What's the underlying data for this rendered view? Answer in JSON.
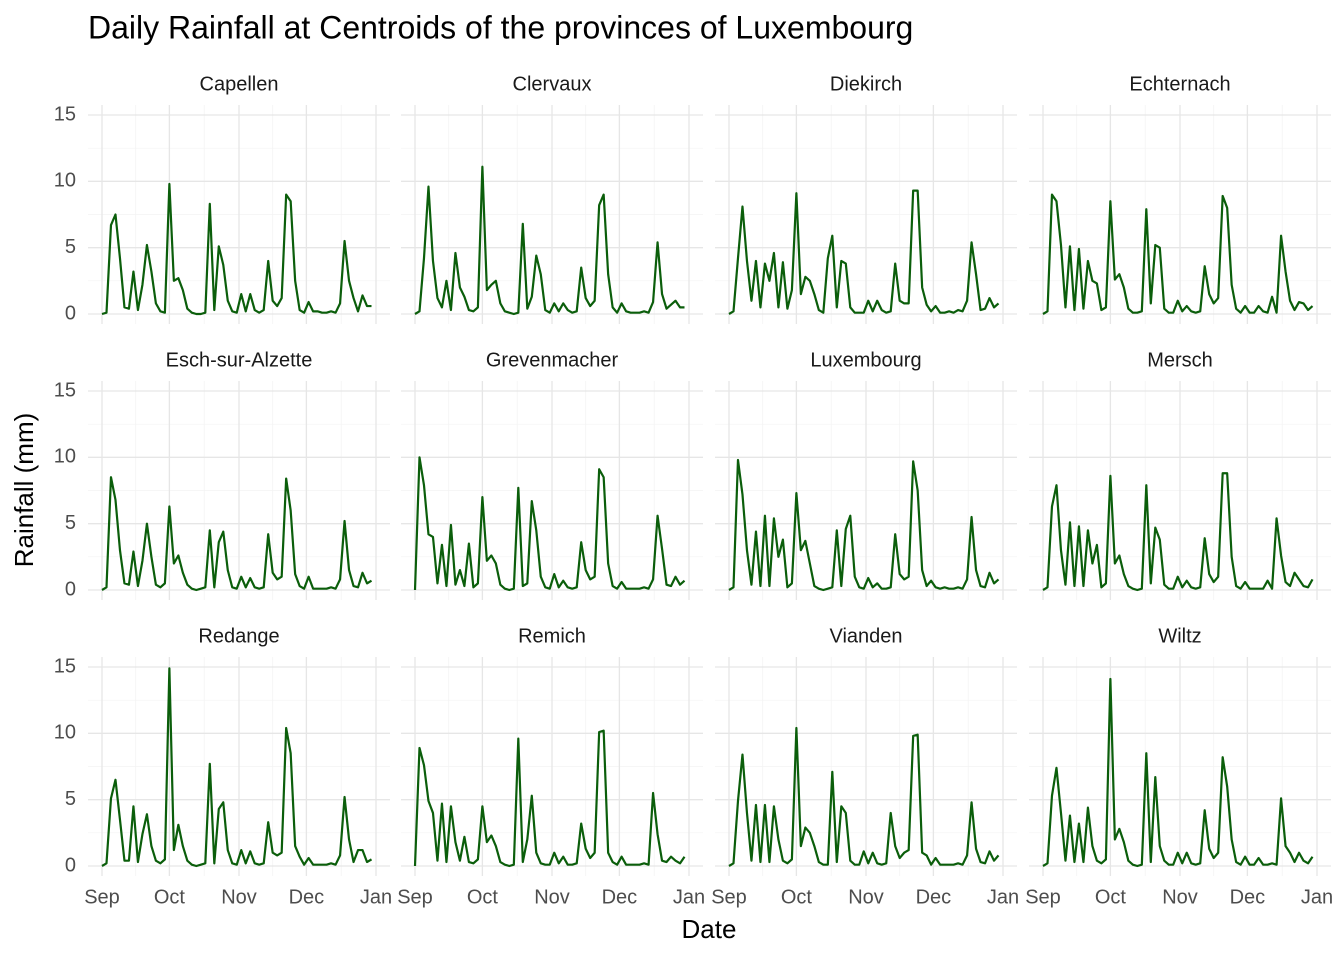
{
  "chart_data": {
    "type": "line",
    "title": "Daily Rainfall at Centroids of the provinces of Luxembourg",
    "xlabel": "Date",
    "ylabel": "Rainfall (mm)",
    "color": "#0b5e0b",
    "grid": true,
    "xlim": [
      0,
      122
    ],
    "xticks": [
      {
        "value": 0,
        "label": "Sep"
      },
      {
        "value": 30,
        "label": "Oct"
      },
      {
        "value": 61,
        "label": "Nov"
      },
      {
        "value": 91,
        "label": "Dec"
      },
      {
        "value": 122,
        "label": "Jan"
      }
    ],
    "ylim": [
      0,
      15
    ],
    "yticks": [
      0,
      5,
      10,
      15
    ],
    "x": [
      0,
      2,
      4,
      6,
      8,
      10,
      12,
      14,
      16,
      18,
      20,
      22,
      24,
      26,
      28,
      30,
      32,
      34,
      36,
      38,
      40,
      42,
      44,
      46,
      48,
      50,
      52,
      54,
      56,
      58,
      60,
      62,
      64,
      66,
      68,
      70,
      72,
      74,
      76,
      78,
      80,
      82,
      84,
      86,
      88,
      90,
      92,
      94,
      96,
      98,
      100,
      102,
      104,
      106,
      108,
      110,
      112,
      114,
      116,
      118,
      120
    ],
    "panels": [
      {
        "name": "Capellen",
        "values": [
          0,
          0.1,
          6.7,
          7.5,
          4.2,
          0.5,
          0.4,
          3.2,
          0.3,
          2.2,
          5.2,
          3.2,
          0.8,
          0.2,
          0.1,
          9.8,
          2.5,
          2.7,
          1.8,
          0.4,
          0.1,
          0,
          0,
          0.1,
          8.3,
          0.3,
          5.1,
          3.7,
          1.0,
          0.2,
          0.1,
          1.5,
          0.2,
          1.5,
          0.3,
          0.1,
          0.3,
          4.0,
          1.0,
          0.6,
          1.2,
          9.0,
          8.5,
          2.5,
          0.3,
          0.1,
          0.9,
          0.2,
          0.2,
          0.1,
          0.1,
          0.2,
          0.1,
          0.8,
          5.5,
          2.5,
          1.2,
          0.2,
          1.4,
          0.6,
          0.6
        ]
      },
      {
        "name": "Clervaux",
        "values": [
          0,
          0.2,
          4.2,
          9.6,
          4.0,
          1.2,
          0.5,
          2.5,
          0.3,
          4.6,
          2.0,
          1.3,
          0.3,
          0.2,
          0.5,
          11.1,
          1.8,
          2.2,
          2.5,
          0.8,
          0.2,
          0.1,
          0,
          0.1,
          6.8,
          0.4,
          1.3,
          4.4,
          3.0,
          0.3,
          0.1,
          0.8,
          0.2,
          0.8,
          0.3,
          0.1,
          0.2,
          3.5,
          1.2,
          0.6,
          1.0,
          8.2,
          9.0,
          3.0,
          0.5,
          0.1,
          0.8,
          0.2,
          0.1,
          0.1,
          0.1,
          0.2,
          0.1,
          0.9,
          5.4,
          1.5,
          0.4,
          0.7,
          1.0,
          0.5,
          0.5
        ]
      },
      {
        "name": "Diekirch",
        "values": [
          0,
          0.2,
          4.2,
          8.1,
          4.0,
          1.0,
          4.0,
          0.5,
          3.8,
          2.5,
          4.6,
          0.5,
          3.9,
          0.4,
          1.8,
          9.1,
          1.5,
          2.8,
          2.5,
          1.5,
          0.3,
          0.1,
          4.2,
          5.9,
          0.5,
          4.0,
          3.8,
          0.5,
          0.1,
          0.1,
          0.1,
          1.0,
          0.2,
          1.0,
          0.3,
          0.1,
          0.2,
          3.8,
          1.0,
          0.8,
          0.8,
          9.3,
          9.3,
          2.0,
          0.7,
          0.2,
          0.6,
          0.1,
          0.1,
          0.2,
          0.1,
          0.3,
          0.2,
          1.0,
          5.4,
          3.0,
          0.3,
          0.4,
          1.2,
          0.5,
          0.8
        ]
      },
      {
        "name": "Echternach",
        "values": [
          0,
          0.2,
          9.0,
          8.5,
          5.2,
          0.5,
          5.1,
          0.3,
          4.9,
          0.4,
          4.0,
          2.5,
          2.3,
          0.3,
          0.5,
          8.5,
          2.6,
          3.0,
          2.0,
          0.4,
          0.1,
          0.1,
          0.2,
          7.9,
          0.8,
          5.2,
          5.0,
          0.4,
          0.1,
          0.1,
          1.0,
          0.2,
          0.6,
          0.2,
          0.1,
          0.2,
          3.6,
          1.5,
          0.8,
          1.2,
          8.9,
          8.0,
          2.2,
          0.4,
          0.1,
          0.6,
          0.1,
          0.1,
          0.6,
          0.2,
          0.1,
          1.3,
          0.1,
          5.9,
          3.2,
          1.0,
          0.3,
          0.9,
          0.8,
          0.3,
          0.6
        ]
      },
      {
        "name": "Esch-sur-Alzette",
        "values": [
          0,
          0.2,
          8.5,
          6.8,
          3.0,
          0.5,
          0.4,
          2.9,
          0.3,
          2.2,
          5.0,
          2.5,
          0.4,
          0.2,
          0.5,
          6.3,
          2.0,
          2.6,
          1.3,
          0.4,
          0.1,
          0,
          0.1,
          0.2,
          4.5,
          0.2,
          3.6,
          4.4,
          1.5,
          0.2,
          0.1,
          1.0,
          0.2,
          0.9,
          0.2,
          0.1,
          0.2,
          4.2,
          1.3,
          0.8,
          1.0,
          8.4,
          6.0,
          1.2,
          0.3,
          0.1,
          1.0,
          0.1,
          0.1,
          0.1,
          0.1,
          0.2,
          0.1,
          0.8,
          5.2,
          1.5,
          0.3,
          0.2,
          1.3,
          0.5,
          0.7
        ]
      },
      {
        "name": "Grevenmacher",
        "values": [
          0,
          10.0,
          7.9,
          4.2,
          4.0,
          0.5,
          3.4,
          0.3,
          4.9,
          0.4,
          1.5,
          0.3,
          3.5,
          0.2,
          0.5,
          7.0,
          2.2,
          2.6,
          2.0,
          0.4,
          0.1,
          0,
          0.1,
          7.7,
          0.3,
          0.5,
          6.7,
          4.5,
          1.0,
          0.2,
          0.1,
          1.2,
          0.2,
          0.7,
          0.2,
          0.1,
          0.2,
          3.6,
          1.5,
          0.8,
          1.0,
          9.1,
          8.5,
          2.0,
          0.3,
          0.1,
          0.6,
          0.1,
          0.1,
          0.1,
          0.1,
          0.2,
          0.1,
          0.8,
          5.6,
          3.1,
          0.4,
          0.3,
          1.0,
          0.4,
          0.7
        ]
      },
      {
        "name": "Luxembourg",
        "values": [
          0,
          0.2,
          9.8,
          7.2,
          3.0,
          0.4,
          4.4,
          0.3,
          5.6,
          0.3,
          5.4,
          2.5,
          3.8,
          0.2,
          0.5,
          7.3,
          3.0,
          3.7,
          2.0,
          0.3,
          0.1,
          0,
          0.1,
          0.2,
          4.5,
          0.3,
          4.6,
          5.6,
          1.0,
          0.2,
          0.1,
          0.9,
          0.2,
          0.5,
          0.1,
          0.1,
          0.2,
          4.2,
          1.2,
          0.8,
          1.0,
          9.7,
          7.5,
          1.5,
          0.3,
          0.7,
          0.2,
          0.1,
          0.2,
          0.1,
          0.1,
          0.2,
          0.1,
          0.8,
          5.5,
          1.5,
          0.3,
          0.2,
          1.3,
          0.5,
          0.8
        ]
      },
      {
        "name": "Mersch",
        "values": [
          0,
          0.2,
          6.3,
          7.9,
          3.0,
          0.4,
          5.1,
          0.3,
          4.8,
          0.3,
          4.5,
          2.0,
          3.4,
          0.2,
          0.5,
          8.6,
          2.0,
          2.6,
          1.2,
          0.3,
          0.1,
          0,
          0.1,
          7.9,
          0.5,
          4.7,
          3.8,
          0.4,
          0.1,
          0.1,
          1.0,
          0.2,
          0.7,
          0.2,
          0.1,
          0.2,
          3.9,
          1.2,
          0.6,
          1.0,
          8.8,
          8.8,
          2.5,
          0.3,
          0.1,
          0.6,
          0.1,
          0.1,
          0.1,
          0.1,
          0.7,
          0.1,
          5.4,
          2.6,
          0.6,
          0.3,
          1.3,
          0.8,
          0.3,
          0.2,
          0.8
        ]
      },
      {
        "name": "Redange",
        "values": [
          0,
          0.2,
          5.1,
          6.5,
          3.5,
          0.4,
          0.4,
          4.5,
          0.3,
          2.4,
          3.9,
          1.5,
          0.4,
          0.2,
          0.5,
          14.9,
          1.2,
          3.1,
          1.5,
          0.4,
          0.1,
          0,
          0.1,
          0.2,
          7.7,
          0.2,
          4.3,
          4.8,
          1.2,
          0.2,
          0.1,
          1.2,
          0.2,
          1.1,
          0.2,
          0.1,
          0.2,
          3.3,
          1.0,
          0.8,
          1.0,
          10.4,
          8.5,
          1.5,
          0.7,
          0.1,
          0.6,
          0.1,
          0.1,
          0.1,
          0.1,
          0.2,
          0.1,
          0.8,
          5.2,
          2.0,
          0.3,
          1.2,
          1.2,
          0.3,
          0.5
        ]
      },
      {
        "name": "Remich",
        "values": [
          0,
          8.9,
          7.6,
          4.9,
          4.0,
          0.4,
          4.7,
          0.3,
          4.5,
          1.8,
          0.4,
          2.2,
          0.3,
          0.2,
          0.5,
          4.5,
          1.8,
          2.3,
          1.5,
          0.3,
          0.1,
          0,
          0.1,
          9.6,
          0.3,
          2.0,
          5.3,
          1.0,
          0.2,
          0.1,
          0.1,
          1.0,
          0.2,
          0.7,
          0.1,
          0.1,
          0.2,
          3.2,
          1.3,
          0.6,
          1.0,
          10.1,
          10.2,
          1.0,
          0.3,
          0.1,
          0.7,
          0.1,
          0.1,
          0.1,
          0.1,
          0.2,
          0.1,
          5.5,
          2.4,
          0.4,
          0.3,
          0.7,
          0.4,
          0.2,
          0.7
        ]
      },
      {
        "name": "Vianden",
        "values": [
          0,
          0.2,
          4.9,
          8.4,
          4.0,
          0.4,
          4.6,
          0.3,
          4.6,
          0.3,
          4.5,
          2.0,
          0.4,
          0.2,
          0.5,
          10.4,
          1.5,
          2.9,
          2.5,
          1.5,
          0.3,
          0.1,
          0.1,
          7.1,
          0.3,
          4.5,
          4.0,
          0.4,
          0.1,
          0.1,
          1.1,
          0.2,
          1.0,
          0.2,
          0.1,
          0.2,
          4.0,
          1.5,
          0.6,
          1.0,
          1.2,
          9.8,
          9.9,
          1.0,
          0.8,
          0.1,
          0.6,
          0.1,
          0.1,
          0.1,
          0.1,
          0.2,
          0.1,
          0.8,
          4.8,
          1.3,
          0.3,
          0.2,
          1.1,
          0.4,
          0.8
        ]
      },
      {
        "name": "Wiltz",
        "values": [
          0,
          0.2,
          5.3,
          7.4,
          4.0,
          0.4,
          3.8,
          0.3,
          3.2,
          0.3,
          4.4,
          1.5,
          0.4,
          0.2,
          0.5,
          14.1,
          2.0,
          2.8,
          1.8,
          0.4,
          0.1,
          0,
          0.1,
          8.5,
          0.3,
          6.7,
          1.5,
          0.4,
          0.1,
          0.1,
          1.0,
          0.2,
          1.0,
          0.2,
          0.1,
          0.2,
          4.2,
          1.3,
          0.6,
          1.0,
          8.2,
          6.0,
          2.0,
          0.3,
          0.1,
          0.7,
          0.1,
          0.1,
          0.6,
          0.1,
          0.1,
          0.2,
          0.1,
          5.1,
          1.5,
          1.0,
          0.3,
          1.0,
          0.4,
          0.2,
          0.7
        ]
      }
    ]
  }
}
